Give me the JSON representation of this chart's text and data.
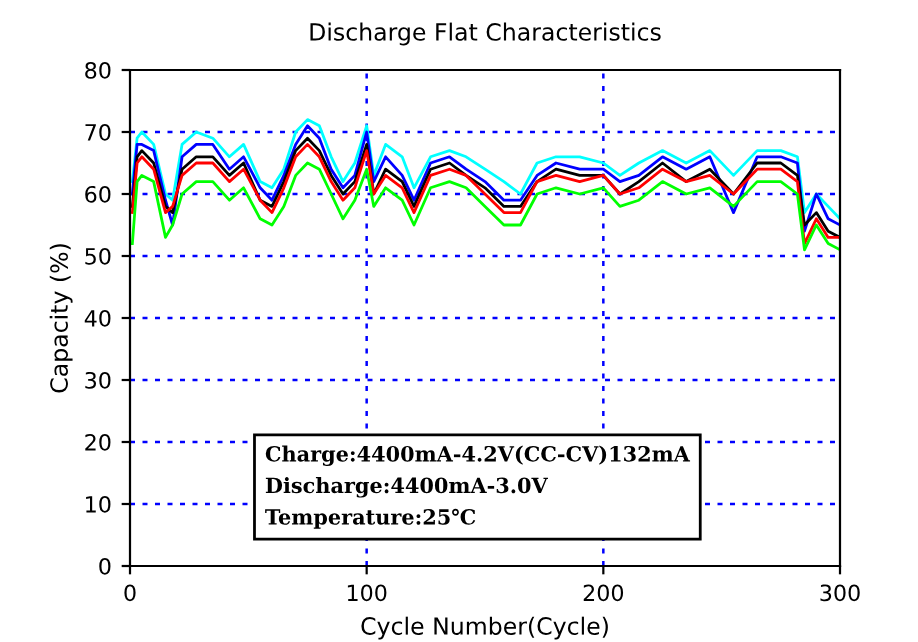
{
  "chart_data": {
    "type": "line",
    "title": "Discharge Flat Characteristics",
    "xlabel": "Cycle Number(Cycle)",
    "ylabel": "Capacity (%)",
    "x": [
      1,
      3,
      5,
      10,
      15,
      18,
      22,
      28,
      35,
      42,
      48,
      55,
      60,
      65,
      70,
      75,
      80,
      85,
      90,
      95,
      100,
      103,
      108,
      115,
      120,
      127,
      135,
      142,
      150,
      158,
      165,
      172,
      180,
      190,
      200,
      207,
      215,
      225,
      235,
      245,
      255,
      265,
      275,
      282,
      285,
      290,
      295,
      300
    ],
    "series": [
      {
        "color": "#00ffff",
        "values": [
          62,
          69,
          70,
          68,
          60,
          59,
          68,
          70,
          69,
          66,
          68,
          62,
          61,
          64,
          70,
          72,
          71,
          66,
          62,
          65,
          71,
          63,
          68,
          66,
          61,
          66,
          67,
          66,
          64,
          62,
          60,
          65,
          66,
          66,
          65,
          63,
          65,
          67,
          65,
          67,
          63,
          67,
          67,
          66,
          57,
          60,
          58,
          56
        ]
      },
      {
        "color": "#0000ff",
        "values": [
          60,
          68,
          68,
          67,
          59,
          55,
          66,
          68,
          68,
          64,
          66,
          61,
          59,
          63,
          68,
          71,
          69,
          64,
          61,
          63,
          70,
          62,
          66,
          63,
          59,
          65,
          66,
          64,
          62,
          59,
          59,
          63,
          65,
          64,
          64,
          62,
          63,
          66,
          64,
          66,
          57,
          66,
          66,
          65,
          54,
          60,
          56,
          55
        ]
      },
      {
        "color": "#000000",
        "values": [
          58,
          66,
          67,
          65,
          58,
          57,
          64,
          66,
          66,
          63,
          65,
          59,
          58,
          62,
          67,
          69,
          67,
          63,
          60,
          62,
          68,
          60,
          64,
          62,
          58,
          64,
          65,
          63,
          61,
          58,
          58,
          62,
          64,
          63,
          63,
          60,
          62,
          65,
          62,
          64,
          60,
          65,
          65,
          63,
          55,
          57,
          54,
          53
        ]
      },
      {
        "color": "#ff0000",
        "values": [
          57,
          65,
          66,
          64,
          57,
          58,
          63,
          65,
          65,
          62,
          64,
          59,
          57,
          61,
          66,
          68,
          66,
          62,
          59,
          61,
          67,
          60,
          63,
          61,
          57,
          63,
          64,
          63,
          60,
          57,
          57,
          62,
          63,
          62,
          63,
          60,
          61,
          64,
          62,
          63,
          60,
          64,
          64,
          62,
          52,
          56,
          53,
          53
        ]
      },
      {
        "color": "#00ff00",
        "values": [
          52,
          62,
          63,
          62,
          53,
          55,
          60,
          62,
          62,
          59,
          61,
          56,
          55,
          58,
          63,
          65,
          64,
          60,
          56,
          59,
          64,
          58,
          61,
          59,
          55,
          61,
          62,
          61,
          58,
          55,
          55,
          60,
          61,
          60,
          61,
          58,
          59,
          62,
          60,
          61,
          58,
          62,
          62,
          60,
          51,
          55,
          52,
          51
        ]
      }
    ],
    "xlim": [
      0,
      300
    ],
    "xticks": [
      0,
      100,
      200,
      300
    ],
    "ylim": [
      0,
      80
    ],
    "yticks": [
      0,
      10,
      20,
      30,
      40,
      50,
      60,
      70,
      80
    ],
    "grid": true,
    "marker": "none",
    "line_style": "solid",
    "annotations": [
      "Charge:4400mA-4.2V(CC-CV)132mA",
      "Discharge:4400mA-3.0V",
      "Temperature:25℃"
    ]
  }
}
